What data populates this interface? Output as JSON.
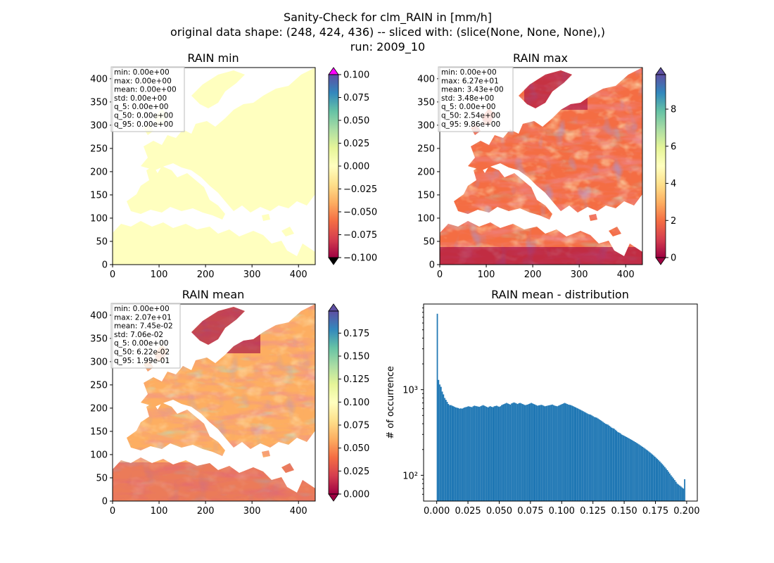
{
  "figure": {
    "suptitle_line1": "Sanity-Check for clm_RAIN in [mm/h]",
    "suptitle_line2": "original data shape: (248, 424, 436) -- sliced with: (slice(None, None, None),)",
    "suptitle_line3": "run: 2009_10"
  },
  "colors": {
    "land_pale": "#ffffbf",
    "hist_bar": "#1f77b4",
    "colormap_spectral": [
      "#9e0142",
      "#d53e4f",
      "#f46d43",
      "#fdae61",
      "#fee08b",
      "#ffffbf",
      "#e6f598",
      "#abdda4",
      "#66c2a5",
      "#3288bd",
      "#5e4fa2"
    ],
    "over_min_panel": "#ff00ff"
  },
  "chart_data": [
    {
      "type": "heatmap",
      "title": "RAIN min",
      "xlim": [
        0,
        436
      ],
      "ylim": [
        0,
        424
      ],
      "xticks": [
        "0",
        "100",
        "200",
        "300",
        "400"
      ],
      "yticks": [
        "0",
        "50",
        "100",
        "150",
        "200",
        "250",
        "300",
        "350",
        "400"
      ],
      "colorbar": {
        "min": -0.1,
        "max": 0.1,
        "ticks": [
          "0.100",
          "0.075",
          "0.050",
          "0.025",
          "0.000",
          "−0.025",
          "−0.050",
          "−0.075",
          "−0.100"
        ],
        "extend": "both"
      },
      "stats": [
        "min: 0.00e+00",
        "max: 0.00e+00",
        "mean: 0.00e+00",
        "std: 0.00e+00",
        "q_5: 0.00e+00",
        "q_50: 0.00e+00",
        "q_95: 0.00e+00"
      ]
    },
    {
      "type": "heatmap",
      "title": "RAIN max",
      "xlim": [
        0,
        436
      ],
      "ylim": [
        0,
        424
      ],
      "xticks": [
        "0",
        "100",
        "200",
        "300",
        "400"
      ],
      "yticks": [
        "0",
        "50",
        "100",
        "150",
        "200",
        "250",
        "300",
        "350",
        "400"
      ],
      "colorbar": {
        "min": 0,
        "max": 9.86,
        "ticks": [
          "8",
          "6",
          "4",
          "2",
          "0"
        ],
        "extend": "both"
      },
      "stats": [
        "min: 0.00e+00",
        "max: 6.27e+01",
        "mean: 3.43e+00",
        "std: 3.48e+00",
        "q_5: 0.00e+00",
        "q_50: 2.54e+00",
        "q_95: 9.86e+00"
      ]
    },
    {
      "type": "heatmap",
      "title": "RAIN mean",
      "xlim": [
        0,
        436
      ],
      "ylim": [
        0,
        424
      ],
      "xticks": [
        "0",
        "100",
        "200",
        "300",
        "400"
      ],
      "yticks": [
        "0",
        "50",
        "100",
        "150",
        "200",
        "250",
        "300",
        "350",
        "400"
      ],
      "colorbar": {
        "min": 0,
        "max": 0.199,
        "ticks": [
          "0.175",
          "0.150",
          "0.125",
          "0.100",
          "0.075",
          "0.050",
          "0.025",
          "0.000"
        ],
        "extend": "both"
      },
      "stats": [
        "min: 0.00e+00",
        "max: 2.07e+01",
        "mean: 7.45e-02",
        "std: 7.06e-02",
        "q_5: 0.00e+00",
        "q_50: 6.22e-02",
        "q_95: 1.99e-01"
      ]
    },
    {
      "type": "bar",
      "title": "RAIN mean - distribution",
      "ylabel": "# of occurrence",
      "yscale": "log",
      "xlim": [
        -0.0105,
        0.2085
      ],
      "ylim": [
        50,
        10000
      ],
      "xticks": [
        "0.000",
        "0.025",
        "0.050",
        "0.075",
        "0.100",
        "0.125",
        "0.150",
        "0.175",
        "0.200"
      ],
      "yticks": [
        "10²",
        "10³"
      ],
      "bins": {
        "start": 0.0,
        "step": 0.0009895
      },
      "counts": [
        7700,
        1300,
        1150,
        1080,
        950,
        880,
        800,
        760,
        720,
        680,
        660,
        660,
        650,
        640,
        630,
        620,
        615,
        610,
        600,
        605,
        600,
        610,
        620,
        625,
        630,
        640,
        635,
        630,
        625,
        640,
        650,
        645,
        640,
        635,
        630,
        640,
        650,
        660,
        650,
        640,
        630,
        620,
        635,
        640,
        630,
        625,
        640,
        645,
        650,
        640,
        630,
        640,
        660,
        670,
        680,
        690,
        700,
        690,
        680,
        670,
        690,
        700,
        710,
        700,
        690,
        680,
        695,
        700,
        690,
        680,
        670,
        660,
        665,
        670,
        680,
        690,
        700,
        690,
        680,
        670,
        660,
        650,
        655,
        660,
        665,
        660,
        650,
        640,
        645,
        650,
        655,
        660,
        665,
        670,
        660,
        650,
        645,
        640,
        650,
        660,
        670,
        680,
        690,
        700,
        690,
        680,
        670,
        665,
        660,
        650,
        640,
        630,
        620,
        610,
        600,
        590,
        580,
        570,
        560,
        550,
        540,
        530,
        520,
        515,
        510,
        500,
        490,
        480,
        475,
        470,
        460,
        450,
        440,
        430,
        420,
        410,
        400,
        395,
        390,
        380,
        370,
        360,
        355,
        350,
        340,
        330,
        320,
        315,
        310,
        300,
        295,
        290,
        285,
        280,
        275,
        270,
        265,
        260,
        255,
        250,
        245,
        240,
        235,
        230,
        225,
        220,
        215,
        210,
        205,
        200,
        195,
        190,
        185,
        180,
        175,
        170,
        165,
        160,
        155,
        150,
        145,
        140,
        135,
        130,
        125,
        120,
        115,
        110,
        105,
        100,
        96,
        92,
        88,
        84,
        80,
        78,
        76,
        74,
        72,
        70,
        90
      ]
    }
  ]
}
